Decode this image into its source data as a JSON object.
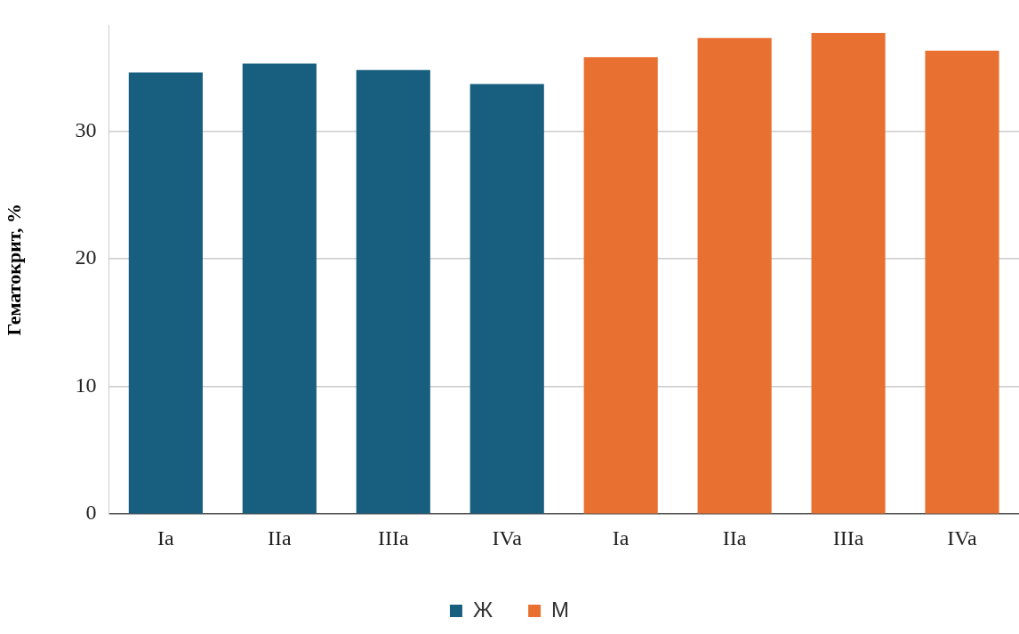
{
  "chart_data": {
    "type": "bar",
    "ylabel": "Гематокрит, %",
    "categories": [
      "Ia",
      "IIa",
      "IIIa",
      "IVa",
      "Ia",
      "IIa",
      "IIIa",
      "IVa"
    ],
    "series": [
      {
        "name": "Ж",
        "color": "#175e7f",
        "values": [
          34.6,
          35.3,
          34.8,
          33.7,
          null,
          null,
          null,
          null
        ]
      },
      {
        "name": "М",
        "color": "#e87132",
        "values": [
          null,
          null,
          null,
          null,
          35.8,
          37.3,
          37.7,
          36.3
        ]
      }
    ],
    "ylim": [
      0,
      38.3
    ],
    "yticks": [
      0,
      10,
      20,
      30
    ],
    "grid": "y",
    "legend": "bottom"
  }
}
